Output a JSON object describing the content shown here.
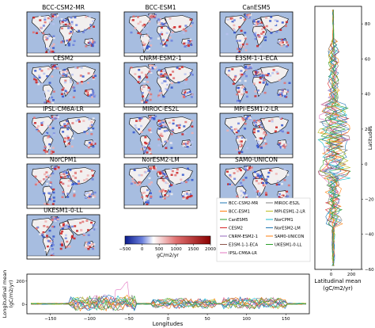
{
  "panels": [
    {
      "title": "BCC-CSM2-MR"
    },
    {
      "title": "BCC-ESM1"
    },
    {
      "title": "CanESM5"
    },
    {
      "title": "CESM2"
    },
    {
      "title": "CNRM-ESM2-1"
    },
    {
      "title": "E3SM-1-1-ECA"
    },
    {
      "title": "IPSL-CM6A-LR"
    },
    {
      "title": "MIROC-ES2L"
    },
    {
      "title": "MPI-ESM1-2-LR"
    },
    {
      "title": "NorCPM1"
    },
    {
      "title": "NorESM2-LM"
    },
    {
      "title": "SAM0-UNICON"
    },
    {
      "title": "UKESM1-0-LL"
    }
  ],
  "colors": {
    "ocean": "#a7bde0",
    "land_neutral": "#f2efef",
    "blue": "#3355cc",
    "red": "#cc2222"
  },
  "colorbar": {
    "ticks": [
      "−500",
      "0",
      "500",
      "1000",
      "1500",
      "2000"
    ],
    "unit": "gC/m2/yr"
  },
  "chart_data": [
    {
      "type": "line",
      "ylabel": "Latitudes",
      "xlabel": "Latitudinal mean\n(gC/m2/yr)",
      "yticks": [
        "80",
        "60",
        "40",
        "20",
        "0",
        "−20",
        "−40",
        "−60"
      ],
      "xticks": [
        "0",
        "200"
      ],
      "ylim": [
        -60,
        90
      ],
      "xlim": [
        -160,
        300
      ],
      "grid": false,
      "legend": "bottom-left",
      "series": [
        {
          "name": "BCC-CSM2-MR",
          "color": "#1f77b4"
        },
        {
          "name": "BCC-ESM1",
          "color": "#ff7f0e"
        },
        {
          "name": "CanESM5",
          "color": "#2ca02c"
        },
        {
          "name": "CESM2",
          "color": "#d62728"
        },
        {
          "name": "CNRM-ESM2-1",
          "color": "#9467bd"
        },
        {
          "name": "E3SM-1-1-ECA",
          "color": "#8c564b"
        },
        {
          "name": "IPSL-CM6A-LR",
          "color": "#e377c2"
        },
        {
          "name": "MIROC-ES2L",
          "color": "#7f7f7f"
        },
        {
          "name": "MPI-ESM1-2-LR",
          "color": "#bcbd22"
        },
        {
          "name": "NorCPM1",
          "color": "#17becf"
        },
        {
          "name": "NorESM2-LM",
          "color": "#1f77b4"
        },
        {
          "name": "SAM0-UNICON",
          "color": "#ff7f0e"
        },
        {
          "name": "UKESM1-0-LL",
          "color": "#2ca02c"
        }
      ]
    },
    {
      "type": "line",
      "xlabel": "Longitudes",
      "ylabel": "Longitudinal mean\n(gC/m2/yr)",
      "xticks": [
        "−150",
        "−100",
        "−50",
        "0",
        "50",
        "100",
        "150"
      ],
      "yticks": [
        "0",
        "200"
      ],
      "xlim": [
        -180,
        180
      ],
      "ylim": [
        -80,
        260
      ],
      "grid": false
    }
  ]
}
